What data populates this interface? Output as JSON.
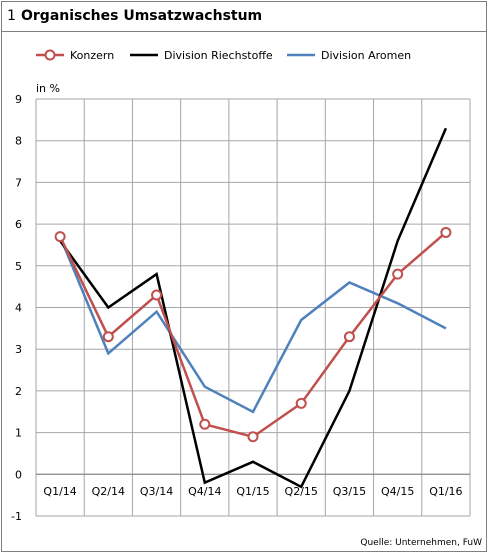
{
  "header": {
    "number": "1",
    "title": "Organisches Umsatzwachstum"
  },
  "source": "Quelle: Unternehmen, FuW",
  "chart_data": {
    "type": "line",
    "categories": [
      "Q1/14",
      "Q2/14",
      "Q3/14",
      "Q4/14",
      "Q1/15",
      "Q2/15",
      "Q3/15",
      "Q4/15",
      "Q1/16"
    ],
    "ylabel": "in %",
    "ylim": [
      -1,
      9
    ],
    "yticks": [
      -1,
      0,
      1,
      2,
      3,
      4,
      5,
      6,
      7,
      8,
      9
    ],
    "grid": true,
    "legend_position": "top",
    "series": [
      {
        "name": "Konzern",
        "color": "#c0504d",
        "marker": "circle",
        "values": [
          5.7,
          3.3,
          4.3,
          1.2,
          0.9,
          1.7,
          3.3,
          4.8,
          5.8
        ]
      },
      {
        "name": "Division Riechstoffe",
        "color": "#000000",
        "marker": "none",
        "values": [
          5.6,
          4.0,
          4.8,
          -0.2,
          0.3,
          -0.3,
          2.0,
          5.6,
          8.3
        ]
      },
      {
        "name": "Division Aromen",
        "color": "#4f81bd",
        "marker": "none",
        "values": [
          5.7,
          2.9,
          3.9,
          2.1,
          1.5,
          3.7,
          4.6,
          4.1,
          3.5
        ]
      }
    ]
  }
}
